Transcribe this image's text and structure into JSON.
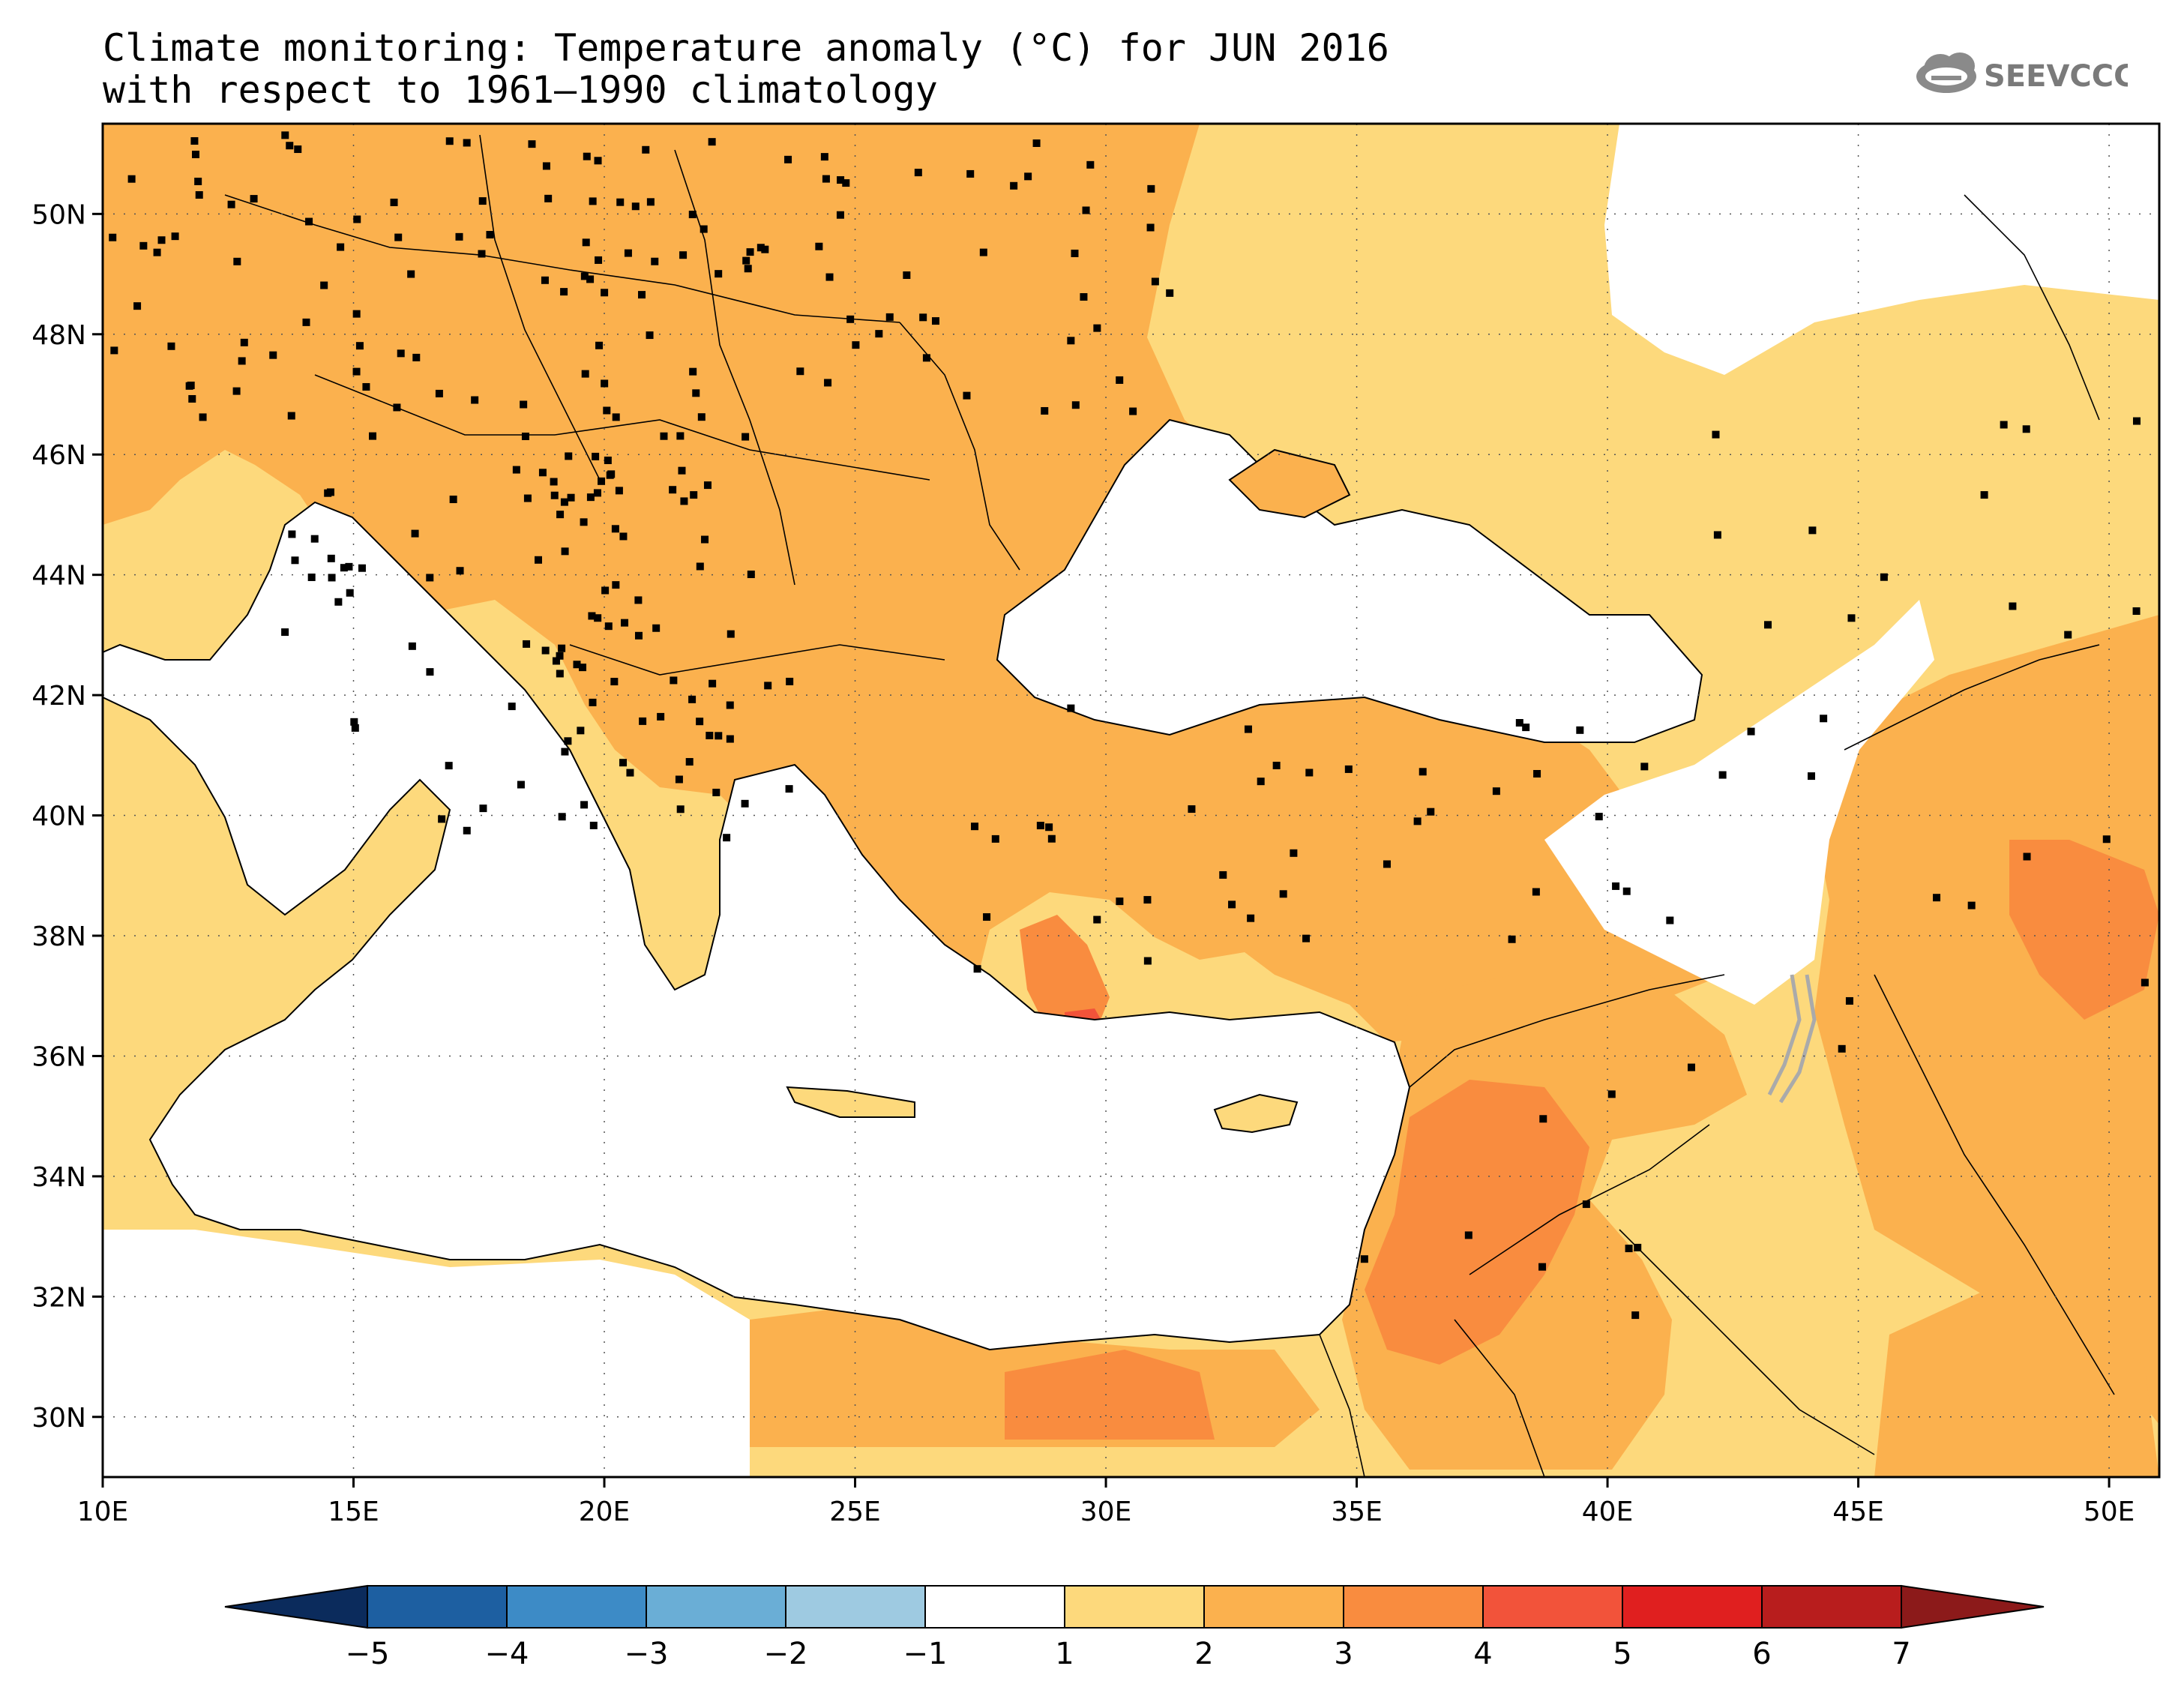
{
  "title_line1": "Climate monitoring: Temperature anomaly (°C) for JUN 2016",
  "title_line2": "with respect to 1961–1990 climatology",
  "logo_text": "SEEVCCC",
  "map": {
    "lon_range": [
      10,
      51
    ],
    "lat_range": [
      29,
      51.5
    ],
    "x_ticks": [
      "10E",
      "15E",
      "20E",
      "25E",
      "30E",
      "35E",
      "40E",
      "45E",
      "50E"
    ],
    "y_ticks": [
      "30N",
      "32N",
      "34N",
      "36N",
      "38N",
      "40N",
      "42N",
      "44N",
      "46N",
      "48N",
      "50N"
    ],
    "colors": {
      "anom_1_2": "#fdd97c",
      "anom_2_3": "#fbb14e",
      "anom_3_4": "#f98c3f",
      "anom_4_5": "#f2533a",
      "sea": "#ffffff",
      "stations": "#000000"
    }
  },
  "colorbar": {
    "labels": [
      "-5",
      "-4",
      "-3",
      "-2",
      "-1",
      "1",
      "2",
      "3",
      "4",
      "5",
      "6",
      "7"
    ],
    "low_color": "#0b2b5c",
    "high_color": "#8c1a1a",
    "colors": [
      "#1d5fa1",
      "#3d8bc6",
      "#6aaed6",
      "#9ecae1",
      "#ffffff",
      "#fdd97c",
      "#fbb14e",
      "#f98c3f",
      "#f2533a",
      "#e01f1f",
      "#b81d1d"
    ]
  }
}
